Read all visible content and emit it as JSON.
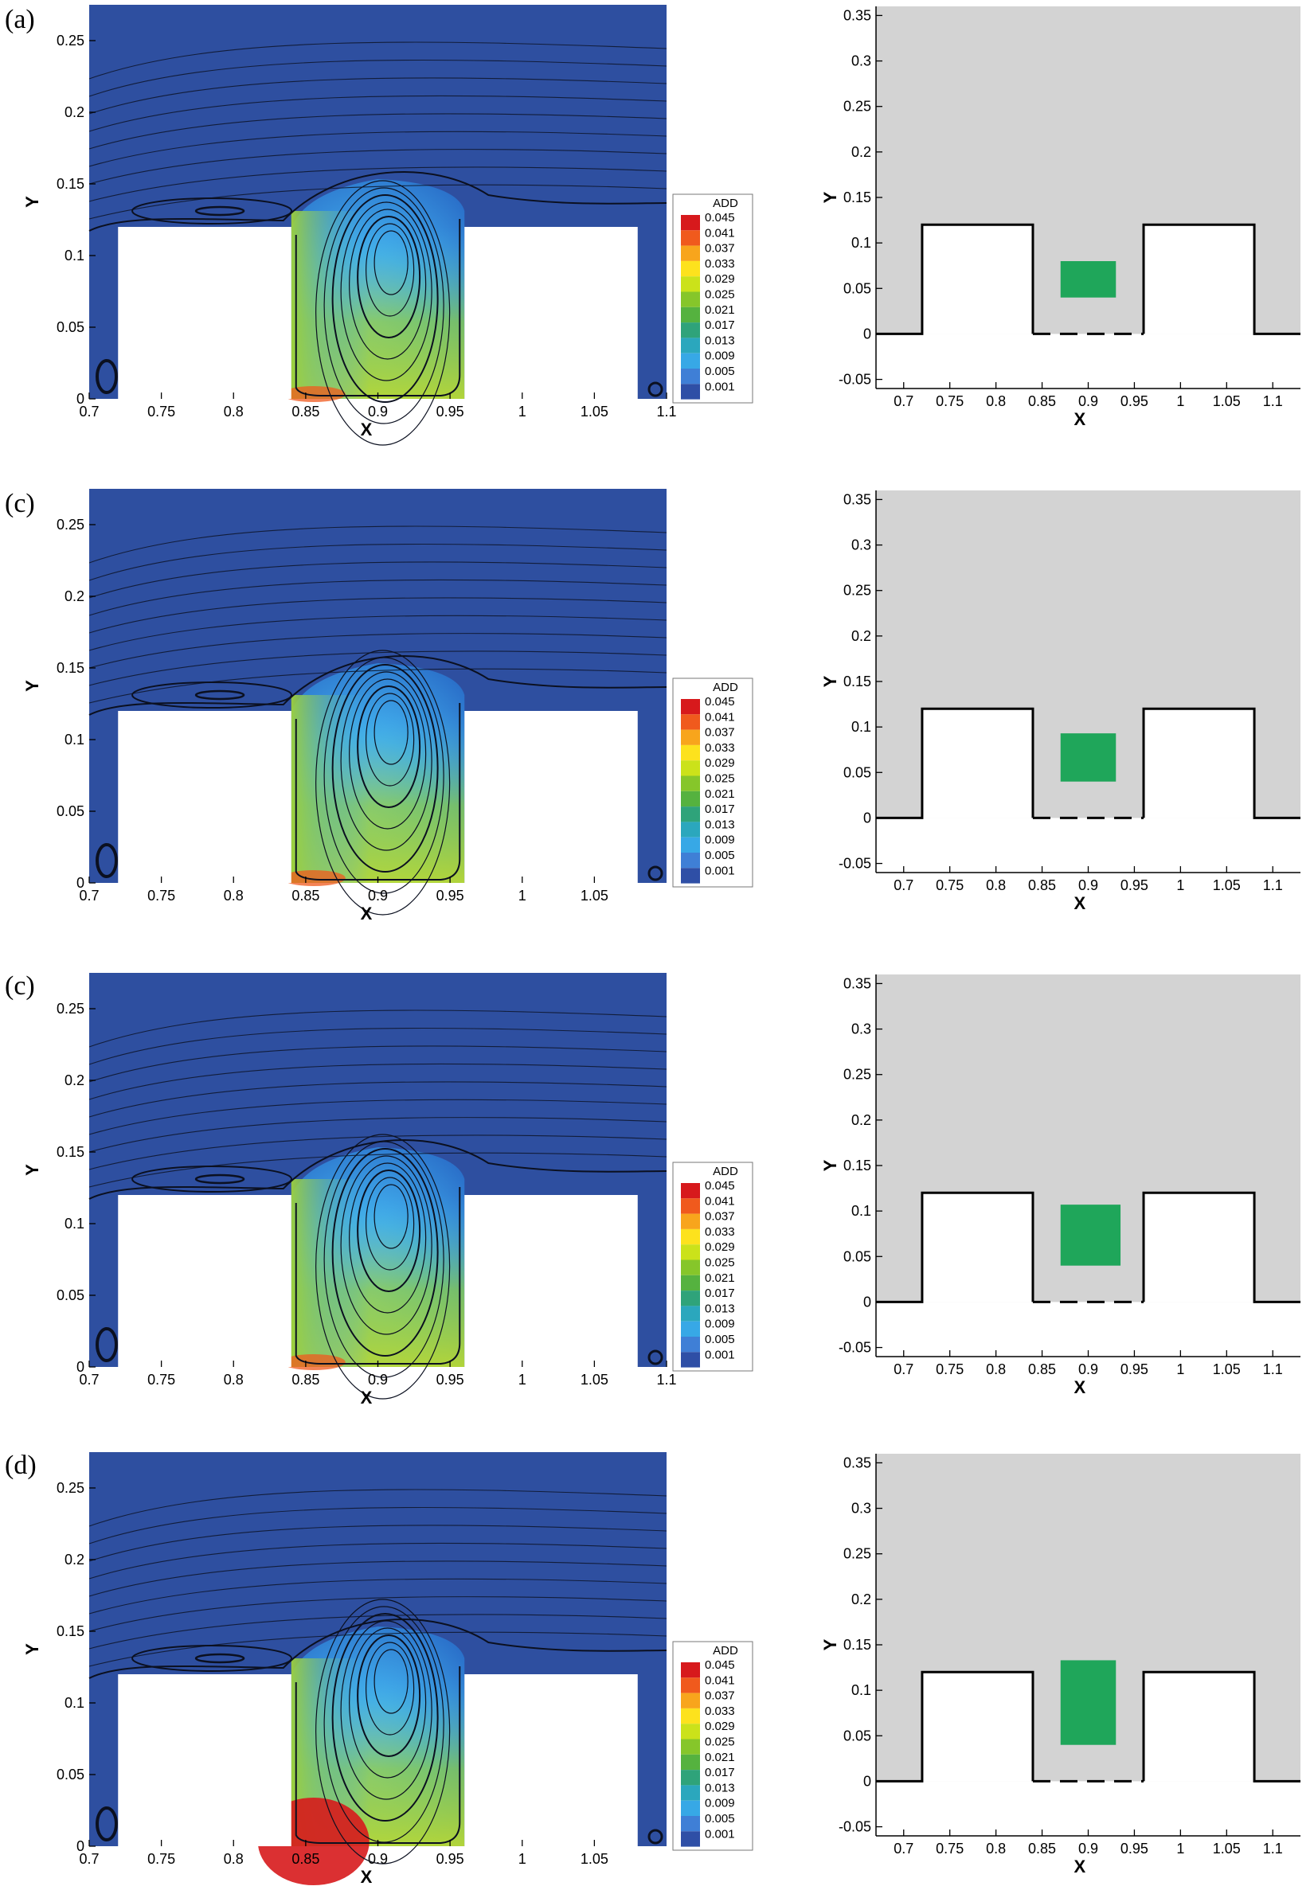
{
  "colorbar": {
    "title": "ADD",
    "levels": [
      "0.045",
      "0.041",
      "0.037",
      "0.033",
      "0.029",
      "0.025",
      "0.021",
      "0.017",
      "0.013",
      "0.009",
      "0.005",
      "0.001"
    ],
    "colors": [
      "#d7191c",
      "#f05a1d",
      "#f8a51c",
      "#fde21d",
      "#cbe21a",
      "#86c62a",
      "#55b23f",
      "#2fa37a",
      "#2ba7bd",
      "#37a8e6",
      "#3f7fd6",
      "#2f4fa6"
    ]
  },
  "colors": {
    "flow_background": "#2e4fa0",
    "geometry_background": "#d3d3d3",
    "green_block": "#1fa65a",
    "wall": "#000000"
  },
  "chart_data": [
    {
      "panel_label": "(a)",
      "type": "heatmap",
      "xlabel": "X",
      "ylabel": "Y",
      "xlim": [
        0.7,
        1.1
      ],
      "ylim": [
        0,
        0.275
      ],
      "xticks": [
        "0.7",
        "0.75",
        "0.8",
        "0.85",
        "0.9",
        "0.95",
        "1",
        "1.05",
        "1.1"
      ],
      "yticks": [
        "0",
        "0.05",
        "0.1",
        "0.15",
        "0.2",
        "0.25"
      ],
      "buildings": [
        [
          0.72,
          0.84,
          0.12
        ],
        [
          0.96,
          1.08,
          0.12
        ]
      ],
      "canyon": [
        0.84,
        0.96
      ],
      "vortex_center": [
        0.91,
        0.1
      ],
      "max_add_region": "bottom-left of canyon",
      "legend": "ADD"
    },
    {
      "panel_label": "",
      "type": "geometry",
      "xlabel": "X",
      "ylabel": "Y",
      "xlim": [
        0.67,
        1.13
      ],
      "ylim": [
        -0.06,
        0.36
      ],
      "xticks": [
        "0.7",
        "0.75",
        "0.8",
        "0.85",
        "0.9",
        "0.95",
        "1",
        "1.05",
        "1.1"
      ],
      "yticks": [
        "-0.05",
        "0",
        "0.05",
        "0.1",
        "0.15",
        "0.2",
        "0.25",
        "0.3",
        "0.35"
      ],
      "buildings": [
        [
          0.72,
          0.84,
          0.12
        ],
        [
          0.96,
          1.08,
          0.12
        ]
      ],
      "green_block": [
        0.87,
        0.93,
        0.04,
        0.08
      ]
    },
    {
      "panel_label": "(c)",
      "type": "heatmap",
      "xlabel": "X",
      "ylabel": "Y",
      "xlim": [
        0.7,
        1.1
      ],
      "ylim": [
        0,
        0.275
      ],
      "xticks": [
        "0.7",
        "0.75",
        "0.8",
        "0.85",
        "0.9",
        "0.95",
        "1",
        "1.05"
      ],
      "yticks": [
        "0",
        "0.05",
        "0.1",
        "0.15",
        "0.2",
        "0.25"
      ],
      "buildings": [
        [
          0.72,
          0.84,
          0.12
        ],
        [
          0.96,
          1.08,
          0.12
        ]
      ],
      "canyon": [
        0.84,
        0.96
      ],
      "vortex_center": [
        0.91,
        0.11
      ],
      "max_add_region": "bottom-left of canyon",
      "legend": "ADD"
    },
    {
      "panel_label": "",
      "type": "geometry",
      "xlabel": "X",
      "ylabel": "Y",
      "xlim": [
        0.67,
        1.13
      ],
      "ylim": [
        -0.06,
        0.36
      ],
      "xticks": [
        "0.7",
        "0.75",
        "0.8",
        "0.85",
        "0.9",
        "0.95",
        "1",
        "1.05",
        "1.1"
      ],
      "yticks": [
        "-0.05",
        "0",
        "0.05",
        "0.1",
        "0.15",
        "0.2",
        "0.25",
        "0.3",
        "0.35"
      ],
      "buildings": [
        [
          0.72,
          0.84,
          0.12
        ],
        [
          0.96,
          1.08,
          0.12
        ]
      ],
      "green_block": [
        0.87,
        0.93,
        0.04,
        0.093
      ]
    },
    {
      "panel_label": "(c)",
      "type": "heatmap",
      "xlabel": "X",
      "ylabel": "Y",
      "xlim": [
        0.7,
        1.1
      ],
      "ylim": [
        0,
        0.275
      ],
      "xticks": [
        "0.7",
        "0.75",
        "0.8",
        "0.85",
        "0.9",
        "0.95",
        "1",
        "1.05",
        "1.1"
      ],
      "yticks": [
        "0",
        "0.05",
        "0.1",
        "0.15",
        "0.2",
        "0.25"
      ],
      "buildings": [
        [
          0.72,
          0.84,
          0.12
        ],
        [
          0.96,
          1.08,
          0.12
        ]
      ],
      "canyon": [
        0.84,
        0.96
      ],
      "vortex_center": [
        0.91,
        0.11
      ],
      "max_add_region": "bottom-left of canyon",
      "legend": "ADD"
    },
    {
      "panel_label": "",
      "type": "geometry",
      "xlabel": "X",
      "ylabel": "Y",
      "xlim": [
        0.67,
        1.13
      ],
      "ylim": [
        -0.06,
        0.36
      ],
      "xticks": [
        "0.7",
        "0.75",
        "0.8",
        "0.85",
        "0.9",
        "0.95",
        "1",
        "1.05",
        "1.1"
      ],
      "yticks": [
        "-0.05",
        "0",
        "0.05",
        "0.1",
        "0.15",
        "0.2",
        "0.25",
        "0.3",
        "0.35"
      ],
      "buildings": [
        [
          0.72,
          0.84,
          0.12
        ],
        [
          0.96,
          1.08,
          0.12
        ]
      ],
      "green_block": [
        0.87,
        0.935,
        0.04,
        0.107
      ]
    },
    {
      "panel_label": "(d)",
      "type": "heatmap",
      "xlabel": "X",
      "ylabel": "Y",
      "xlim": [
        0.7,
        1.1
      ],
      "ylim": [
        0,
        0.275
      ],
      "xticks": [
        "0.7",
        "0.75",
        "0.8",
        "0.85",
        "0.9",
        "0.95",
        "1",
        "1.05"
      ],
      "yticks": [
        "0",
        "0.05",
        "0.1",
        "0.15",
        "0.2",
        "0.25"
      ],
      "buildings": [
        [
          0.72,
          0.84,
          0.12
        ],
        [
          0.96,
          1.08,
          0.12
        ]
      ],
      "canyon": [
        0.84,
        0.96
      ],
      "vortex_center": [
        0.91,
        0.12
      ],
      "max_add_region": "bottom-left of canyon",
      "legend": "ADD"
    },
    {
      "panel_label": "",
      "type": "geometry",
      "xlabel": "X",
      "ylabel": "Y",
      "xlim": [
        0.67,
        1.13
      ],
      "ylim": [
        -0.06,
        0.36
      ],
      "xticks": [
        "0.7",
        "0.75",
        "0.8",
        "0.85",
        "0.9",
        "0.95",
        "1",
        "1.05",
        "1.1"
      ],
      "yticks": [
        "-0.05",
        "0",
        "0.05",
        "0.1",
        "0.15",
        "0.2",
        "0.25",
        "0.3",
        "0.35"
      ],
      "buildings": [
        [
          0.72,
          0.84,
          0.12
        ],
        [
          0.96,
          1.08,
          0.12
        ]
      ],
      "green_block": [
        0.87,
        0.93,
        0.04,
        0.133
      ]
    }
  ]
}
